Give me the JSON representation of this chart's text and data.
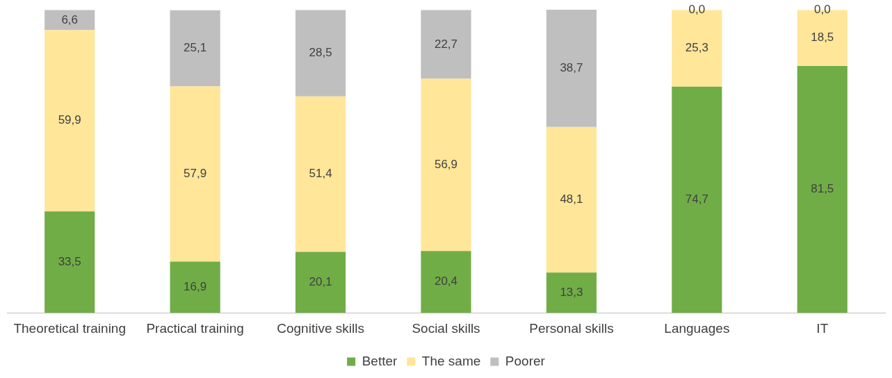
{
  "chart_data": {
    "type": "bar",
    "stacked": true,
    "legend": "bottom",
    "grid": false,
    "categories": [
      "Theoretical training",
      "Practical training",
      "Cognitive skills",
      "Social skills",
      "Personal skills",
      "Languages",
      "IT"
    ],
    "series": [
      {
        "name": "Better",
        "color": "#70ad47",
        "values": [
          33.5,
          16.9,
          20.1,
          20.4,
          13.3,
          74.7,
          81.5
        ],
        "value_labels": [
          "33,5",
          "16,9",
          "20,1",
          "20,4",
          "13,3",
          "74,7",
          "81,5"
        ]
      },
      {
        "name": "The same",
        "color": "#ffe699",
        "values": [
          59.9,
          57.9,
          51.4,
          56.9,
          48.1,
          25.3,
          18.5
        ],
        "value_labels": [
          "59,9",
          "57,9",
          "51,4",
          "56,9",
          "48,1",
          "25,3",
          "18,5"
        ]
      },
      {
        "name": "Poorer",
        "color": "#bfbfbf",
        "values": [
          6.6,
          25.1,
          28.5,
          22.7,
          38.7,
          0.0,
          0.0
        ],
        "value_labels": [
          "6,6",
          "25,1",
          "28,5",
          "22,7",
          "38,7",
          "0,0",
          "0,0"
        ]
      }
    ]
  }
}
